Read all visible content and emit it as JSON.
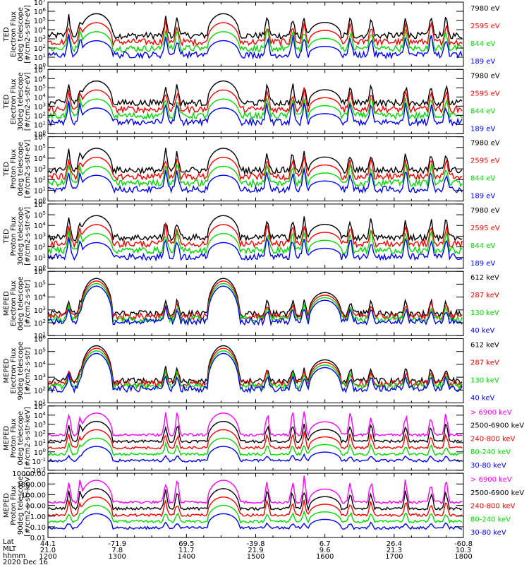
{
  "chart_data": {
    "type": "line",
    "date": "2020 Dec 16",
    "x_axis": {
      "row_labels": [
        "Lat",
        "MLT",
        "hhmm"
      ],
      "xlim": [
        1200,
        1800
      ],
      "ticks": [
        {
          "hhmm": "1200",
          "lat": "44.1",
          "mlt": "21.0"
        },
        {
          "hhmm": "1300",
          "lat": "-71.9",
          "mlt": "7.8"
        },
        {
          "hhmm": "1400",
          "lat": "69.5",
          "mlt": "11.7"
        },
        {
          "hhmm": "1500",
          "lat": "-39.8",
          "mlt": "21.9"
        },
        {
          "hhmm": "1600",
          "lat": "6.7",
          "mlt": "9.6"
        },
        {
          "hhmm": "1700",
          "lat": "26.4",
          "mlt": "21.3"
        },
        {
          "hhmm": "1800",
          "lat": "-60.8",
          "mlt": "10.3"
        }
      ]
    },
    "panels": [
      {
        "ylabel": [
          "TED",
          "Electron Flux",
          "0deg telescope",
          "[#/cm2-s-str-eV]"
        ],
        "ylim_exp": [
          0,
          7
        ],
        "yticks": [
          "10^7",
          "10^6",
          "10^5",
          "10^4",
          "10^3",
          "10^2",
          "10^1",
          "10^0"
        ],
        "legend": [
          {
            "label": "7980 eV",
            "color": "#000000"
          },
          {
            "label": "2595 eV",
            "color": "#ff0000"
          },
          {
            "label": "844 eV",
            "color": "#00dd00"
          },
          {
            "label": "189 eV",
            "color": "#0000ff"
          }
        ],
        "style": "ted_e"
      },
      {
        "ylabel": [
          "TED",
          "Electron Flux",
          "30deg telescope",
          "[#/cm2-s-str-eV]"
        ],
        "ylim_exp": [
          0,
          7
        ],
        "yticks": [
          "10^7",
          "10^6",
          "10^5",
          "10^4",
          "10^3",
          "10^2",
          "10^1",
          "10^0"
        ],
        "legend": [
          {
            "label": "7980 eV",
            "color": "#000000"
          },
          {
            "label": "2595 eV",
            "color": "#ff0000"
          },
          {
            "label": "844 eV",
            "color": "#00dd00"
          },
          {
            "label": "189 eV",
            "color": "#0000ff"
          }
        ],
        "style": "ted_e30"
      },
      {
        "ylabel": [
          "TED",
          "Proton Flux",
          "0deg telescope",
          "[#/cm2-s-str-eV]"
        ],
        "ylim_exp": [
          0,
          6
        ],
        "yticks": [
          "10^6",
          "10^5",
          "10^4",
          "10^3",
          "10^2",
          "10^1",
          "10^0"
        ],
        "legend": [
          {
            "label": "7980 eV",
            "color": "#000000"
          },
          {
            "label": "2595 eV",
            "color": "#ff0000"
          },
          {
            "label": "844 eV",
            "color": "#00dd00"
          },
          {
            "label": "189 eV",
            "color": "#0000ff"
          }
        ],
        "style": "ted_p"
      },
      {
        "ylabel": [
          "TED",
          "Proton Flux",
          "30deg telescope",
          "[#/cm2-s-str-eV]"
        ],
        "ylim_exp": [
          0,
          6
        ],
        "yticks": [
          "10^6",
          "10^5",
          "10^4",
          "10^3",
          "10^2",
          "10^1",
          "10^0"
        ],
        "legend": [
          {
            "label": "7980 eV",
            "color": "#000000"
          },
          {
            "label": "2595 eV",
            "color": "#ff0000"
          },
          {
            "label": "844 eV",
            "color": "#00dd00"
          },
          {
            "label": "189 eV",
            "color": "#0000ff"
          }
        ],
        "style": "ted_p30"
      },
      {
        "ylabel": [
          "MEPED",
          "Electron Flux",
          "0deg telescope",
          "[#/cm2-s-str]"
        ],
        "ylim_exp": [
          1,
          6
        ],
        "yticks": [
          "10^6",
          "10^5",
          "10^4",
          "10^3",
          "10^2",
          "10^1"
        ],
        "legend": [
          {
            "label": "612 keV",
            "color": "#000000"
          },
          {
            "label": "287 keV",
            "color": "#ff0000"
          },
          {
            "label": "130 keV",
            "color": "#00dd00"
          },
          {
            "label": "40 keV",
            "color": "#0000ff"
          }
        ],
        "style": "mep_e"
      },
      {
        "ylabel": [
          "MEPED",
          "Electron Flux",
          "90deg telescope",
          "[#/cm2-s-str]"
        ],
        "ylim_exp": [
          1,
          6
        ],
        "yticks": [
          "10^6",
          "10^5",
          "10^4",
          "10^3",
          "10^2",
          "10^1"
        ],
        "legend": [
          {
            "label": "612 keV",
            "color": "#000000"
          },
          {
            "label": "287 keV",
            "color": "#ff0000"
          },
          {
            "label": "130 keV",
            "color": "#00dd00"
          },
          {
            "label": "40 keV",
            "color": "#0000ff"
          }
        ],
        "style": "mep_e90"
      },
      {
        "ylabel": [
          "MEPED",
          "Proton Flux",
          "0deg telescope",
          "[#/cm2-s-str-keV]"
        ],
        "ylim_exp": [
          -2,
          5
        ],
        "yticks": [
          "10^5",
          "10^4",
          "10^3",
          "10^2",
          "10^1",
          "10^0",
          "10^-1",
          "10^-2"
        ],
        "legend": [
          {
            "label": "> 6900 keV",
            "color": "#ff00ff"
          },
          {
            "label": "2500-6900 keV",
            "color": "#000000"
          },
          {
            "label": "240-800 keV",
            "color": "#ff0000"
          },
          {
            "label": "80-240 keV",
            "color": "#00dd00"
          },
          {
            "label": "30-80 keV",
            "color": "#0000ff"
          }
        ],
        "style": "mep_p"
      },
      {
        "ylabel": [
          "MEPED",
          "Proton Flux",
          "90deg telescope",
          "[#/cm2-s-str-keV]"
        ],
        "ylim_exp": [
          -2,
          4
        ],
        "yticks": [
          "10000.00",
          "1000.00",
          "100.00",
          "10.00",
          "1.00",
          "0.10",
          "0.01"
        ],
        "legend": [
          {
            "label": "> 6900 keV",
            "color": "#ff00ff"
          },
          {
            "label": "2500-6900 keV",
            "color": "#000000"
          },
          {
            "label": "240-800 keV",
            "color": "#ff0000"
          },
          {
            "label": "80-240 keV",
            "color": "#00dd00"
          },
          {
            "label": "30-80 keV",
            "color": "#0000ff"
          }
        ],
        "style": "mep_p90"
      }
    ],
    "events": {
      "arches_hhmm": [
        1242,
        1432,
        1600
      ],
      "spikes_hhmm": [
        1218,
        1228,
        1342,
        1352,
        1510,
        1532,
        1542,
        1622,
        1640,
        1710,
        1732,
        1745
      ]
    }
  }
}
